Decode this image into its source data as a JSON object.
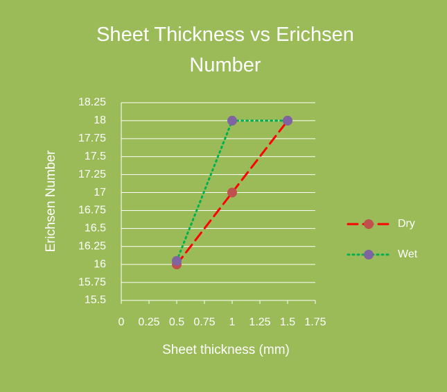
{
  "chart_data": {
    "type": "line",
    "title": "Sheet Thickness vs Erichsen Number",
    "xlabel": "Sheet thickness (mm)",
    "ylabel": "Erichsen Number",
    "xlim": [
      0,
      1.75
    ],
    "xticks": [
      0,
      0.25,
      0.5,
      0.75,
      1,
      1.25,
      1.5,
      1.75
    ],
    "ylim": [
      15.5,
      18.25
    ],
    "yticks": [
      15.5,
      15.75,
      16,
      16.25,
      16.5,
      16.75,
      17,
      17.25,
      17.5,
      17.75,
      18,
      18.25
    ],
    "grid": true,
    "legend": "right",
    "background": "#9bbb59",
    "series": [
      {
        "name": "Dry",
        "color": "#ff0000",
        "marker_color": "#c0504d",
        "line_style": "dash",
        "x": [
          0.5,
          1,
          1.5
        ],
        "values": [
          16,
          17,
          18
        ]
      },
      {
        "name": "Wet",
        "color": "#00b050",
        "marker_color": "#8064a2",
        "line_style": "dot",
        "x": [
          0.5,
          1,
          1.5
        ],
        "values": [
          16.05,
          18,
          18
        ]
      }
    ]
  }
}
